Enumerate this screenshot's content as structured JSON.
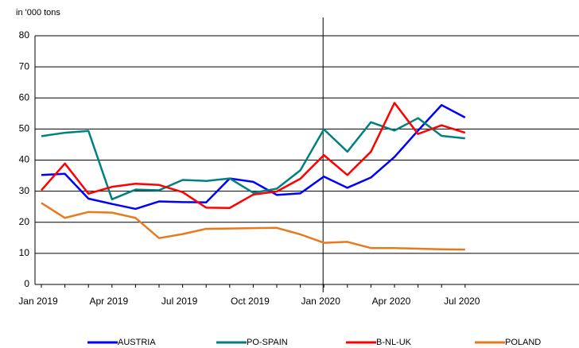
{
  "chart_data": {
    "type": "line",
    "y_label": "in '000 tons",
    "categories": [
      "Jan 2019",
      null,
      null,
      "Apr 2019",
      null,
      null,
      "Jul 2019",
      null,
      null,
      "Oct 2019",
      null,
      null,
      "Jan 2020",
      null,
      null,
      "Apr 2020",
      null,
      null,
      "Jul 2020"
    ],
    "series": [
      {
        "name": "AUSTRIA",
        "color": "#0000ff",
        "values": [
          35.2,
          35.6,
          27.6,
          25.9,
          24.3,
          26.7,
          26.5,
          26.4,
          34.1,
          33.0,
          28.8,
          29.3,
          34.7,
          31.1,
          34.4,
          41.0,
          49.5,
          57.7,
          53.7
        ]
      },
      {
        "name": "PO-SPAIN",
        "color": "#008080",
        "values": [
          47.7,
          48.8,
          49.4,
          27.4,
          30.5,
          30.3,
          33.6,
          33.3,
          34.1,
          29.5,
          30.8,
          36.7,
          49.9,
          42.7,
          52.2,
          49.5,
          53.5,
          47.8,
          47.0
        ]
      },
      {
        "name": "B-NL-UK",
        "color": "#ff0000",
        "values": [
          30.3,
          38.9,
          29.2,
          31.4,
          32.4,
          32.0,
          29.7,
          24.7,
          24.6,
          28.9,
          29.9,
          34.0,
          41.6,
          35.2,
          42.7,
          58.4,
          48.4,
          51.2,
          48.8
        ]
      },
      {
        "name": "POLAND",
        "color": "#e87a1e",
        "values": [
          26.2,
          21.4,
          23.3,
          23.1,
          21.4,
          14.9,
          16.2,
          17.9,
          18.0,
          18.1,
          18.2,
          16.1,
          13.4,
          13.7,
          11.7,
          11.7,
          11.5,
          11.3,
          11.2
        ]
      }
    ],
    "ylim": [
      0,
      80
    ],
    "yticks": [
      0,
      10,
      20,
      30,
      40,
      50,
      60,
      70,
      80
    ],
    "grid": true
  }
}
